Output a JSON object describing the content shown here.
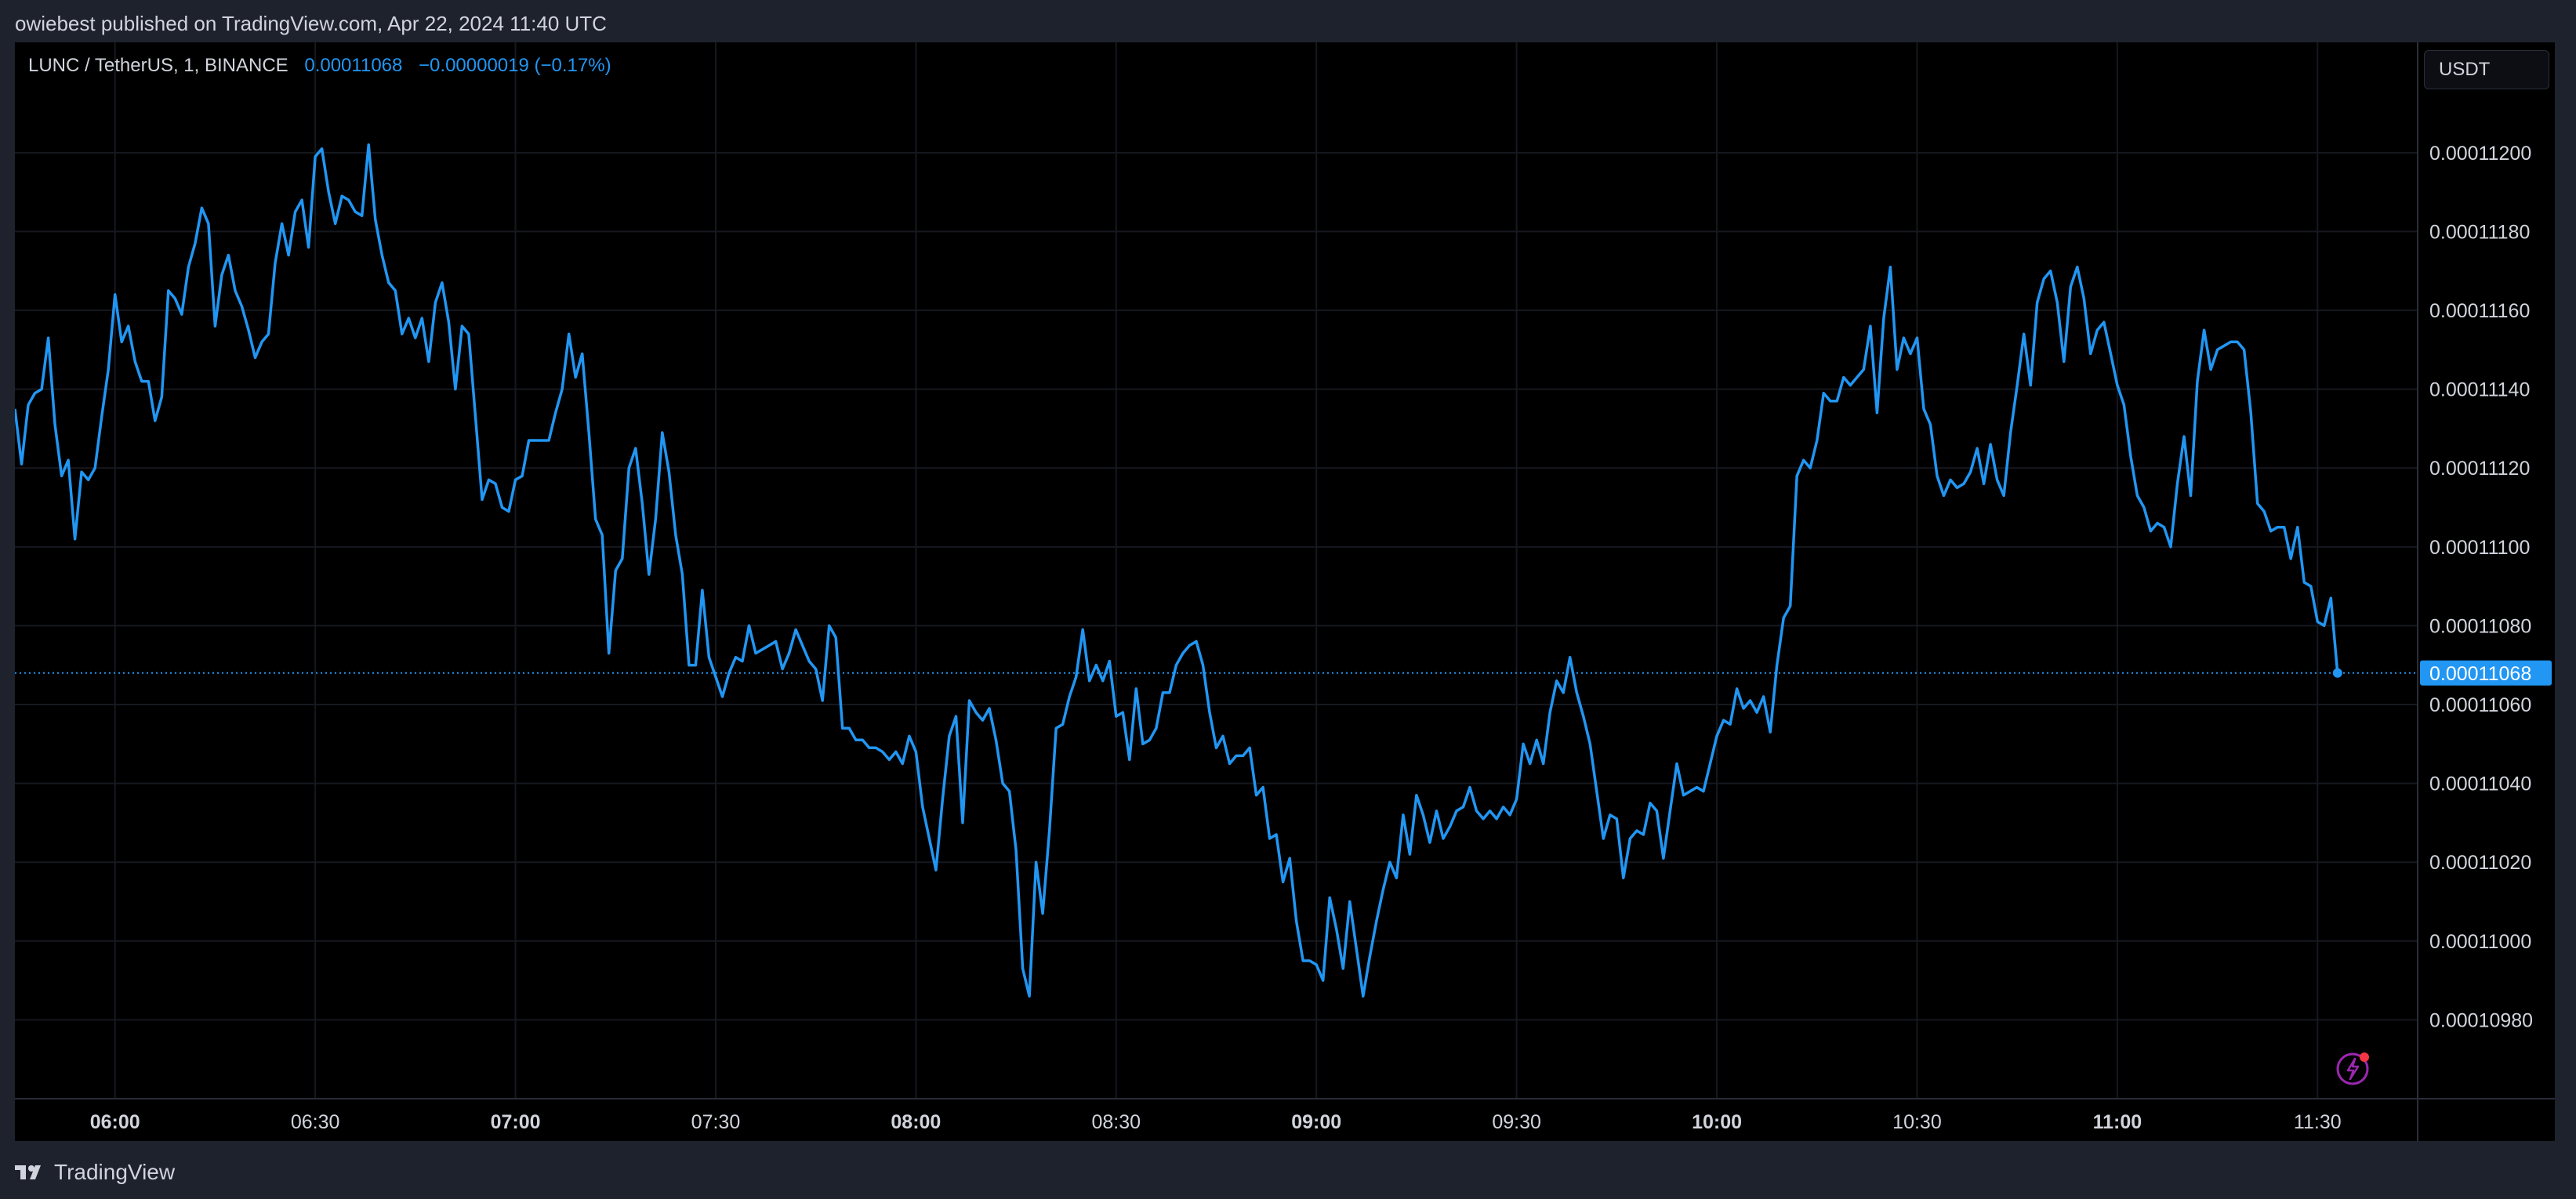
{
  "header": {
    "published_text": "owiebest published on TradingView.com, Apr 22, 2024 11:40 UTC"
  },
  "legend": {
    "symbol": "LUNC / TetherUS, 1, BINANCE",
    "last_price": "0.00011068",
    "change": "−0.00000019 (−0.17%)"
  },
  "currency_button": {
    "label": "USDT"
  },
  "footer": {
    "brand": "TradingView"
  },
  "colors": {
    "background": "#000000",
    "outer": "#1e222d",
    "line": "#2196f3",
    "text": "#d1d4dc",
    "grid": "#16181f"
  },
  "chart_data": {
    "type": "line",
    "title": "LUNC / TetherUS, 1, BINANCE",
    "xlabel": "",
    "ylabel": "",
    "grid": true,
    "ylim": [
      0.0001096,
      0.00011228
    ],
    "xlim": [
      "05:45",
      "11:45"
    ],
    "x_ticks": [
      {
        "label": "06:00",
        "bold": true
      },
      {
        "label": "06:30",
        "bold": false
      },
      {
        "label": "07:00",
        "bold": true
      },
      {
        "label": "07:30",
        "bold": false
      },
      {
        "label": "08:00",
        "bold": true
      },
      {
        "label": "08:30",
        "bold": false
      },
      {
        "label": "09:00",
        "bold": true
      },
      {
        "label": "09:30",
        "bold": false
      },
      {
        "label": "10:00",
        "bold": true
      },
      {
        "label": "10:30",
        "bold": false
      },
      {
        "label": "11:00",
        "bold": true
      },
      {
        "label": "11:30",
        "bold": false
      }
    ],
    "y_ticks": [
      "0.00010980",
      "0.00011000",
      "0.00011020",
      "0.00011040",
      "0.00011060",
      "0.00011080",
      "0.00011100",
      "0.00011120",
      "0.00011140",
      "0.00011160",
      "0.00011180",
      "0.00011200"
    ],
    "last_value_label": "0.00011068",
    "series": [
      {
        "time_start": "05:45",
        "interval_minutes": 1,
        "values": [
          0.00011135,
          0.00011121,
          0.00011136,
          0.00011139,
          0.0001114,
          0.00011153,
          0.00011131,
          0.00011118,
          0.00011122,
          0.00011102,
          0.00011119,
          0.00011117,
          0.0001112,
          0.00011133,
          0.00011145,
          0.00011164,
          0.00011152,
          0.00011156,
          0.00011147,
          0.00011142,
          0.00011142,
          0.00011132,
          0.00011138,
          0.00011165,
          0.00011163,
          0.00011159,
          0.00011171,
          0.00011177,
          0.00011186,
          0.00011182,
          0.00011156,
          0.00011169,
          0.00011174,
          0.00011165,
          0.00011161,
          0.00011155,
          0.00011148,
          0.00011152,
          0.00011154,
          0.00011172,
          0.00011182,
          0.00011174,
          0.00011185,
          0.00011188,
          0.00011176,
          0.00011199,
          0.00011201,
          0.0001119,
          0.00011182,
          0.00011189,
          0.00011188,
          0.00011185,
          0.00011184,
          0.00011202,
          0.00011183,
          0.00011174,
          0.00011167,
          0.00011165,
          0.00011154,
          0.00011158,
          0.00011153,
          0.00011158,
          0.00011147,
          0.00011162,
          0.00011167,
          0.00011157,
          0.0001114,
          0.00011156,
          0.00011154,
          0.00011133,
          0.00011112,
          0.00011117,
          0.00011116,
          0.0001111,
          0.00011109,
          0.00011117,
          0.00011118,
          0.00011127,
          0.00011127,
          0.00011127,
          0.00011127,
          0.00011134,
          0.0001114,
          0.00011154,
          0.00011143,
          0.00011149,
          0.00011129,
          0.00011107,
          0.00011103,
          0.00011073,
          0.00011094,
          0.00011097,
          0.0001112,
          0.00011125,
          0.00011111,
          0.00011093,
          0.00011107,
          0.00011129,
          0.00011119,
          0.00011103,
          0.00011093,
          0.0001107,
          0.0001107,
          0.00011089,
          0.00011072,
          0.00011067,
          0.00011062,
          0.00011068,
          0.00011072,
          0.00011071,
          0.0001108,
          0.00011073,
          0.00011074,
          0.00011075,
          0.00011076,
          0.00011069,
          0.00011073,
          0.00011079,
          0.00011075,
          0.00011071,
          0.00011069,
          0.00011061,
          0.0001108,
          0.00011077,
          0.00011054,
          0.00011054,
          0.00011051,
          0.00011051,
          0.00011049,
          0.00011049,
          0.00011048,
          0.00011046,
          0.00011048,
          0.00011045,
          0.00011052,
          0.00011048,
          0.00011034,
          0.00011026,
          0.00011018,
          0.00011036,
          0.00011052,
          0.00011057,
          0.0001103,
          0.00011061,
          0.00011058,
          0.00011056,
          0.00011059,
          0.00011051,
          0.0001104,
          0.00011038,
          0.00011023,
          0.00010993,
          0.00010986,
          0.0001102,
          0.00011007,
          0.00011028,
          0.00011054,
          0.00011055,
          0.00011062,
          0.00011067,
          0.00011079,
          0.00011066,
          0.0001107,
          0.00011066,
          0.00011071,
          0.00011057,
          0.00011058,
          0.00011046,
          0.00011064,
          0.0001105,
          0.00011051,
          0.00011054,
          0.00011063,
          0.00011063,
          0.0001107,
          0.00011073,
          0.00011075,
          0.00011076,
          0.0001107,
          0.00011058,
          0.00011049,
          0.00011052,
          0.00011045,
          0.00011047,
          0.00011047,
          0.00011049,
          0.00011037,
          0.00011039,
          0.00011026,
          0.00011027,
          0.00011015,
          0.00011021,
          0.00011005,
          0.00010995,
          0.00010995,
          0.00010994,
          0.0001099,
          0.00011011,
          0.00011003,
          0.00010993,
          0.0001101,
          0.00010998,
          0.00010986,
          0.00010996,
          0.00011005,
          0.00011013,
          0.0001102,
          0.00011016,
          0.00011032,
          0.00011022,
          0.00011037,
          0.00011032,
          0.00011025,
          0.00011033,
          0.00011026,
          0.00011029,
          0.00011033,
          0.00011034,
          0.00011039,
          0.00011033,
          0.00011031,
          0.00011033,
          0.00011031,
          0.00011034,
          0.00011032,
          0.00011036,
          0.0001105,
          0.00011045,
          0.00011051,
          0.00011045,
          0.00011058,
          0.00011066,
          0.00011063,
          0.00011072,
          0.00011063,
          0.00011057,
          0.0001105,
          0.00011038,
          0.00011026,
          0.00011032,
          0.00011031,
          0.00011016,
          0.00011026,
          0.00011028,
          0.00011027,
          0.00011035,
          0.00011033,
          0.00011021,
          0.00011033,
          0.00011045,
          0.00011037,
          0.00011038,
          0.00011039,
          0.00011038,
          0.00011045,
          0.00011052,
          0.00011056,
          0.00011055,
          0.00011064,
          0.00011059,
          0.00011061,
          0.00011058,
          0.00011062,
          0.00011053,
          0.0001107,
          0.00011082,
          0.00011085,
          0.00011118,
          0.00011122,
          0.0001112,
          0.00011127,
          0.00011139,
          0.00011137,
          0.00011137,
          0.00011143,
          0.00011141,
          0.00011143,
          0.00011145,
          0.00011156,
          0.00011134,
          0.00011158,
          0.00011171,
          0.00011145,
          0.00011153,
          0.00011149,
          0.00011153,
          0.00011135,
          0.00011131,
          0.00011118,
          0.00011113,
          0.00011117,
          0.00011115,
          0.00011116,
          0.00011119,
          0.00011125,
          0.00011116,
          0.00011126,
          0.00011117,
          0.00011113,
          0.00011129,
          0.00011141,
          0.00011154,
          0.00011141,
          0.00011162,
          0.00011168,
          0.0001117,
          0.00011162,
          0.00011147,
          0.00011166,
          0.00011171,
          0.00011163,
          0.00011149,
          0.00011155,
          0.00011157,
          0.00011149,
          0.00011141,
          0.00011136,
          0.00011123,
          0.00011113,
          0.0001111,
          0.00011104,
          0.00011106,
          0.00011105,
          0.000111,
          0.00011116,
          0.00011128,
          0.00011113,
          0.00011142,
          0.00011155,
          0.00011145,
          0.0001115,
          0.00011151,
          0.00011152,
          0.00011152,
          0.0001115,
          0.00011134,
          0.00011111,
          0.00011109,
          0.00011104,
          0.00011105,
          0.00011105,
          0.00011097,
          0.00011105,
          0.00011091,
          0.0001109,
          0.00011081,
          0.0001108,
          0.00011087,
          0.00011068
        ]
      }
    ]
  }
}
